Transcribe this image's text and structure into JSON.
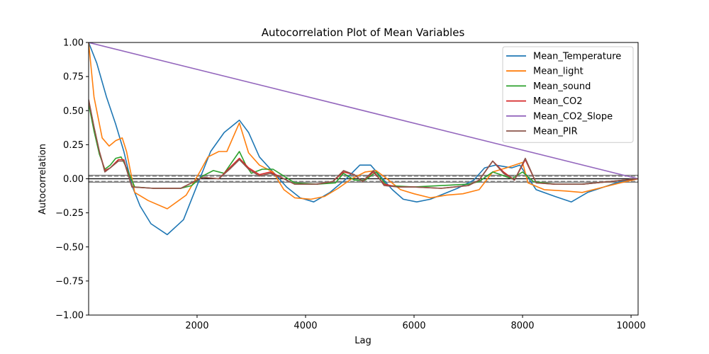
{
  "chart_data": {
    "type": "line",
    "title": "Autocorrelation Plot of Mean Variables",
    "xlabel": "Lag",
    "ylabel": "Autocorrelation",
    "xlim": [
      1,
      10130
    ],
    "ylim": [
      -1.0,
      1.0
    ],
    "xticks": [
      2000,
      4000,
      6000,
      8000,
      10000
    ],
    "yticks": [
      -1.0,
      -0.75,
      -0.5,
      -0.25,
      0.0,
      0.25,
      0.5,
      0.75,
      1.0
    ],
    "xtick_labels": [
      "2000",
      "4000",
      "6000",
      "8000",
      "10000"
    ],
    "ytick_labels": [
      "−1.00",
      "−0.75",
      "−0.50",
      "−0.25",
      "0.00",
      "0.25",
      "0.50",
      "0.75",
      "1.00"
    ],
    "grid": false,
    "legend_position": "top-right",
    "reference_lines": {
      "zero": 0.0,
      "confidence_solid": [
        0.0256,
        -0.0256
      ],
      "confidence_dashed": [
        0.0195,
        -0.0195
      ],
      "solid_color": "#808080",
      "dashed_color": "#808080"
    },
    "series": [
      {
        "name": "Mean_Temperature",
        "color": "#1f77b4",
        "x": [
          1,
          150,
          330,
          500,
          650,
          800,
          950,
          1150,
          1450,
          1750,
          2000,
          2250,
          2500,
          2780,
          2950,
          3150,
          3400,
          3650,
          3900,
          4150,
          4450,
          4750,
          5000,
          5200,
          5400,
          5600,
          5800,
          6050,
          6300,
          6550,
          6800,
          7100,
          7300,
          7500,
          7800,
          7950,
          8250,
          8600,
          8900,
          9200,
          9500,
          9800,
          10130
        ],
        "values": [
          1.0,
          0.85,
          0.6,
          0.4,
          0.2,
          -0.05,
          -0.2,
          -0.33,
          -0.41,
          -0.3,
          -0.05,
          0.2,
          0.34,
          0.43,
          0.34,
          0.16,
          0.05,
          -0.06,
          -0.14,
          -0.17,
          -0.1,
          0.0,
          0.1,
          0.1,
          0.01,
          -0.08,
          -0.15,
          -0.17,
          -0.15,
          -0.11,
          -0.07,
          -0.01,
          0.08,
          0.1,
          0.08,
          0.1,
          -0.08,
          -0.13,
          -0.17,
          -0.1,
          -0.06,
          -0.02,
          0.0
        ]
      },
      {
        "name": "Mean_light",
        "color": "#ff7f0e",
        "x": [
          1,
          100,
          250,
          380,
          500,
          620,
          700,
          850,
          1100,
          1450,
          1800,
          2050,
          2200,
          2400,
          2550,
          2780,
          2950,
          3150,
          3400,
          3600,
          3800,
          4100,
          4350,
          4600,
          4850,
          5100,
          5300,
          5500,
          5750,
          6000,
          6300,
          6600,
          6900,
          7200,
          7450,
          7700,
          8000,
          8100,
          8400,
          8800,
          9100,
          9500,
          9800,
          10130
        ],
        "values": [
          1.0,
          0.6,
          0.3,
          0.24,
          0.28,
          0.3,
          0.2,
          -0.1,
          -0.16,
          -0.22,
          -0.12,
          0.05,
          0.16,
          0.2,
          0.2,
          0.41,
          0.19,
          0.1,
          0.05,
          -0.08,
          -0.14,
          -0.15,
          -0.13,
          -0.07,
          0.0,
          0.05,
          0.06,
          0.0,
          -0.08,
          -0.11,
          -0.14,
          -0.12,
          -0.11,
          -0.08,
          0.05,
          0.08,
          0.12,
          -0.03,
          -0.08,
          -0.09,
          -0.1,
          -0.06,
          -0.03,
          0.0
        ]
      },
      {
        "name": "Mean_sound",
        "color": "#2ca02c",
        "x": [
          1,
          100,
          200,
          300,
          400,
          500,
          600,
          700,
          850,
          1200,
          1700,
          1900,
          2100,
          2300,
          2500,
          2780,
          2900,
          3000,
          3200,
          3400,
          3600,
          3800,
          4200,
          4550,
          4700,
          4900,
          5100,
          5300,
          5500,
          6000,
          6500,
          7000,
          7200,
          7450,
          7600,
          7800,
          8000,
          8200,
          8600,
          9100,
          9600,
          10130
        ],
        "values": [
          0.55,
          0.35,
          0.18,
          0.07,
          0.1,
          0.15,
          0.16,
          0.08,
          -0.06,
          -0.07,
          -0.07,
          -0.05,
          0.02,
          0.06,
          0.04,
          0.2,
          0.1,
          0.04,
          0.07,
          0.07,
          0.02,
          -0.03,
          -0.04,
          -0.03,
          0.04,
          -0.01,
          -0.01,
          0.05,
          -0.05,
          -0.06,
          -0.05,
          -0.04,
          -0.02,
          0.05,
          0.03,
          0.0,
          0.05,
          -0.02,
          -0.04,
          -0.04,
          -0.02,
          0.0
        ]
      },
      {
        "name": "Mean_CO2",
        "color": "#d62728",
        "x": [
          1,
          100,
          200,
          300,
          400,
          550,
          650,
          800,
          1200,
          1700,
          2100,
          2400,
          2600,
          2780,
          2950,
          3150,
          3350,
          3600,
          3800,
          4200,
          4500,
          4700,
          4900,
          5050,
          5250,
          5450,
          5700,
          6000,
          6500,
          7000,
          7200,
          7450,
          7650,
          7850,
          8050,
          8250,
          8600,
          9100,
          9600,
          10130
        ],
        "values": [
          0.58,
          0.38,
          0.2,
          0.06,
          0.08,
          0.14,
          0.14,
          -0.06,
          -0.07,
          -0.07,
          0.01,
          0.0,
          0.08,
          0.15,
          0.08,
          0.03,
          0.05,
          0.0,
          -0.04,
          -0.04,
          -0.02,
          0.05,
          0.03,
          -0.02,
          0.05,
          -0.04,
          -0.06,
          -0.06,
          -0.07,
          -0.05,
          -0.01,
          0.13,
          0.05,
          -0.01,
          0.14,
          -0.03,
          -0.04,
          -0.04,
          -0.02,
          0.0
        ]
      },
      {
        "name": "Mean_CO2_Slope",
        "color": "#9467bd",
        "x": [
          1,
          10130
        ],
        "values": [
          1.0,
          0.0
        ]
      },
      {
        "name": "Mean_PIR",
        "color": "#8c564b",
        "x": [
          1,
          100,
          200,
          300,
          400,
          550,
          650,
          800,
          1200,
          1700,
          2100,
          2400,
          2600,
          2780,
          2950,
          3150,
          3350,
          3600,
          3800,
          4200,
          4500,
          4700,
          4900,
          5050,
          5250,
          5450,
          5700,
          6000,
          6500,
          7000,
          7200,
          7450,
          7650,
          7850,
          8050,
          8250,
          8600,
          9100,
          9600,
          10130
        ],
        "values": [
          0.58,
          0.38,
          0.2,
          0.05,
          0.08,
          0.13,
          0.13,
          -0.06,
          -0.07,
          -0.07,
          0.01,
          0.0,
          0.07,
          0.14,
          0.07,
          0.02,
          0.04,
          0.0,
          -0.04,
          -0.04,
          -0.02,
          0.06,
          0.03,
          -0.02,
          0.06,
          -0.05,
          -0.06,
          -0.06,
          -0.07,
          -0.05,
          -0.01,
          0.13,
          0.04,
          -0.01,
          0.15,
          -0.03,
          -0.04,
          -0.04,
          -0.02,
          0.0
        ]
      }
    ]
  }
}
